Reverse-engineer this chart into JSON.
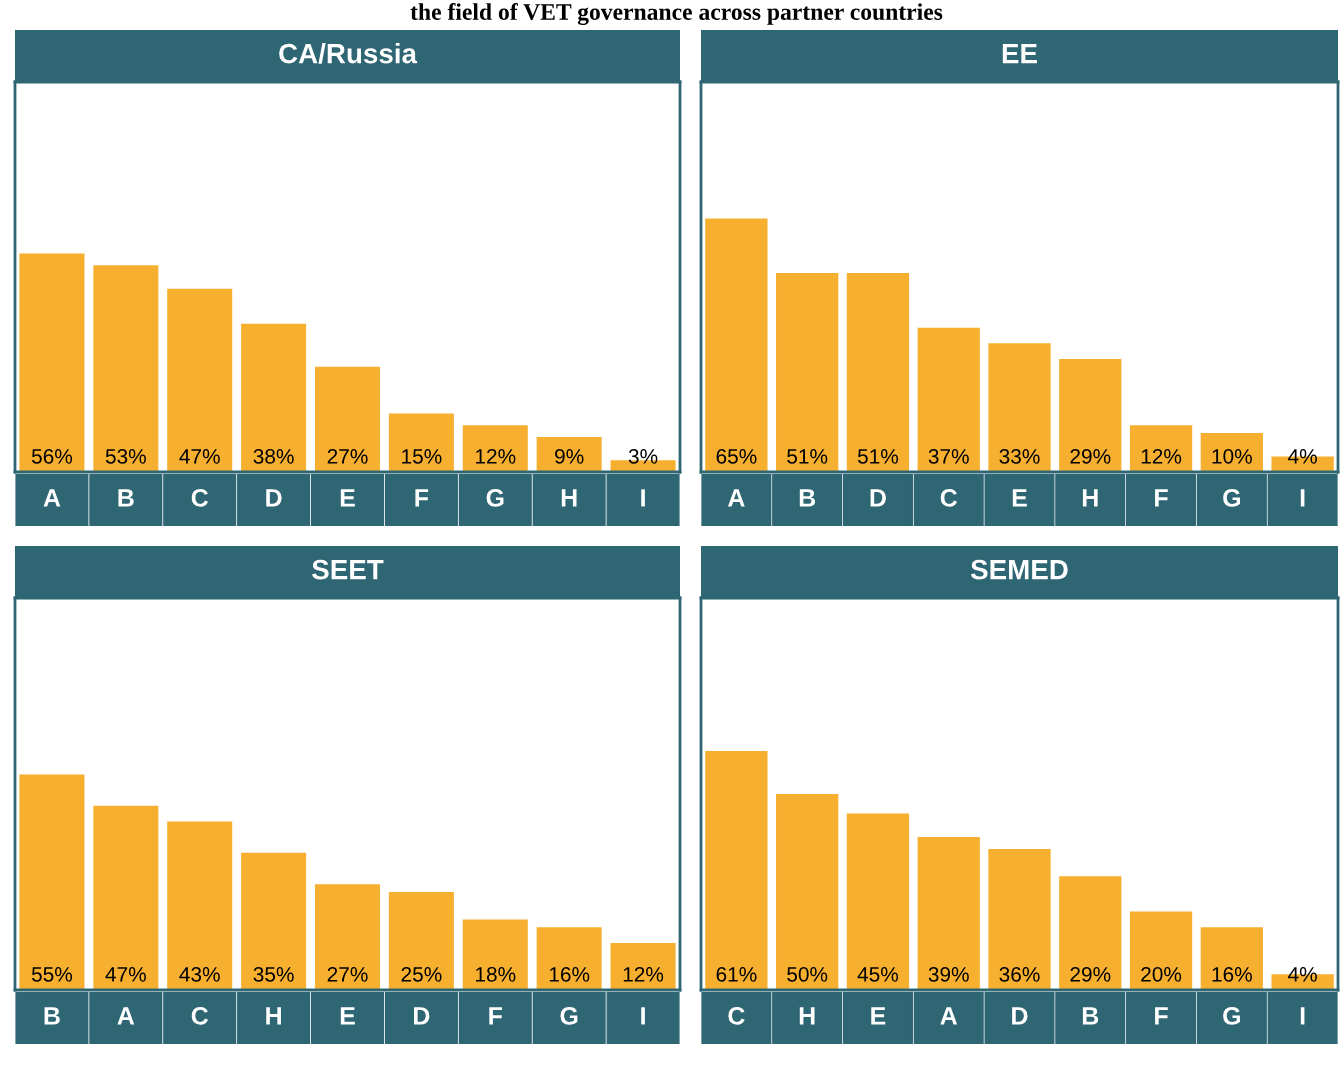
{
  "chart_data": [
    {
      "type": "bar",
      "title": "CA/Russia",
      "annotations": [
        "the field of VET governance across partner countries"
      ],
      "categories": [
        "A",
        "B",
        "C",
        "D",
        "E",
        "F",
        "G",
        "H",
        "I"
      ],
      "values": [
        56,
        53,
        47,
        38,
        27,
        15,
        12,
        9,
        3
      ],
      "value_labels": [
        "56%",
        "53%",
        "47%",
        "38%",
        "27%",
        "15%",
        "12%",
        "9%",
        "3%"
      ],
      "color": "#f7af30",
      "ylim": [
        0,
        100
      ]
    },
    {
      "type": "bar",
      "title": "EE",
      "categories": [
        "A",
        "B",
        "D",
        "C",
        "E",
        "H",
        "F",
        "G",
        "I"
      ],
      "values": [
        65,
        51,
        51,
        37,
        33,
        29,
        12,
        10,
        4
      ],
      "value_labels": [
        "65%",
        "51%",
        "51%",
        "37%",
        "33%",
        "29%",
        "12%",
        "10%",
        "4%"
      ],
      "color": "#f7af30",
      "ylim": [
        0,
        100
      ]
    },
    {
      "type": "bar",
      "title": "SEET",
      "categories": [
        "B",
        "A",
        "C",
        "H",
        "E",
        "D",
        "F",
        "G",
        "I"
      ],
      "values": [
        55,
        47,
        43,
        35,
        27,
        25,
        18,
        16,
        12
      ],
      "value_labels": [
        "55%",
        "47%",
        "43%",
        "35%",
        "27%",
        "25%",
        "18%",
        "16%",
        "12%"
      ],
      "color": "#f7af30",
      "ylim": [
        0,
        100
      ]
    },
    {
      "type": "bar",
      "title": "SEMED",
      "categories": [
        "C",
        "H",
        "E",
        "A",
        "D",
        "B",
        "F",
        "G",
        "I"
      ],
      "values": [
        61,
        50,
        45,
        39,
        36,
        29,
        20,
        16,
        4
      ],
      "value_labels": [
        "61%",
        "50%",
        "45%",
        "39%",
        "36%",
        "29%",
        "20%",
        "16%",
        "4%"
      ],
      "color": "#f7af30",
      "ylim": [
        0,
        100
      ]
    }
  ]
}
